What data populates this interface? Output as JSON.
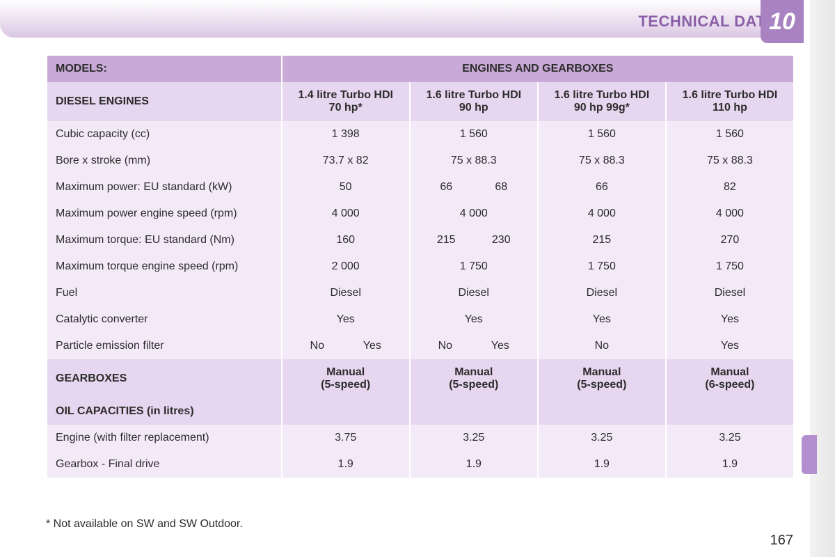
{
  "header": {
    "title": "TECHNICAL DATA",
    "chapter": "10"
  },
  "page_number": "167",
  "footnote": "* Not available on SW and SW Outdoor.",
  "colors": {
    "header_gradient_top": "#ffffff",
    "header_gradient_bottom": "#d9c7e2",
    "header_text": "#8a5fa8",
    "chapter_tab_bg": "#a982c2",
    "chapter_tab_text": "#ffffff",
    "hdr_dark_bg": "#c9a9d6",
    "hdr_light_bg": "#e7d6ef",
    "row_bg": "#f3eaf8",
    "text": "#2c2c2c",
    "right_tab": "#b48fcf"
  },
  "table": {
    "top_headers": {
      "models": "MODELS:",
      "engines_gearboxes": "ENGINES AND GEARBOXES"
    },
    "diesel_label": "DIESEL ENGINES",
    "engine_columns": [
      {
        "line1": "1.4 litre Turbo HDI",
        "line2": "70 hp*"
      },
      {
        "line1": "1.6 litre Turbo HDI",
        "line2": "90 hp"
      },
      {
        "line1": "1.6 litre Turbo HDI",
        "line2": "90 hp 99g*"
      },
      {
        "line1": "1.6 litre Turbo HDI",
        "line2": "110 hp"
      }
    ],
    "rows": [
      {
        "label": "Cubic capacity (cc)",
        "cells": [
          "1 398",
          "1 560",
          "1 560",
          "1 560"
        ]
      },
      {
        "label": "Bore x stroke (mm)",
        "cells": [
          "73.7 x 82",
          "75 x 88.3",
          "75 x 88.3",
          "75 x 88.3"
        ]
      },
      {
        "label": "Maximum power: EU standard (kW)",
        "cells": [
          "50",
          {
            "split": [
              "66",
              "68"
            ]
          },
          "66",
          "82"
        ]
      },
      {
        "label": "Maximum power engine speed (rpm)",
        "cells": [
          "4 000",
          "4 000",
          "4 000",
          "4 000"
        ]
      },
      {
        "label": "Maximum torque: EU standard (Nm)",
        "cells": [
          "160",
          {
            "split": [
              "215",
              "230"
            ]
          },
          "215",
          "270"
        ]
      },
      {
        "label": "Maximum torque engine speed (rpm)",
        "cells": [
          "2 000",
          "1 750",
          "1 750",
          "1 750"
        ]
      },
      {
        "label": "Fuel",
        "cells": [
          "Diesel",
          "Diesel",
          "Diesel",
          "Diesel"
        ]
      },
      {
        "label": "Catalytic converter",
        "cells": [
          "Yes",
          "Yes",
          "Yes",
          "Yes"
        ]
      },
      {
        "label": "Particle emission filter",
        "cells": [
          {
            "split": [
              "No",
              "Yes"
            ]
          },
          {
            "split": [
              "No",
              "Yes"
            ]
          },
          "No",
          "Yes"
        ]
      }
    ],
    "gearboxes": {
      "label": "GEARBOXES",
      "cells": [
        {
          "line1": "Manual",
          "line2": "(5-speed)"
        },
        {
          "line1": "Manual",
          "line2": "(5-speed)"
        },
        {
          "line1": "Manual",
          "line2": "(5-speed)"
        },
        {
          "line1": "Manual",
          "line2": "(6-speed)"
        }
      ]
    },
    "oil": {
      "label": "OIL CAPACITIES (in litres)",
      "rows": [
        {
          "label": "Engine (with filter replacement)",
          "cells": [
            "3.75",
            "3.25",
            "3.25",
            "3.25"
          ]
        },
        {
          "label": "Gearbox - Final drive",
          "cells": [
            "1.9",
            "1.9",
            "1.9",
            "1.9"
          ]
        }
      ]
    }
  }
}
